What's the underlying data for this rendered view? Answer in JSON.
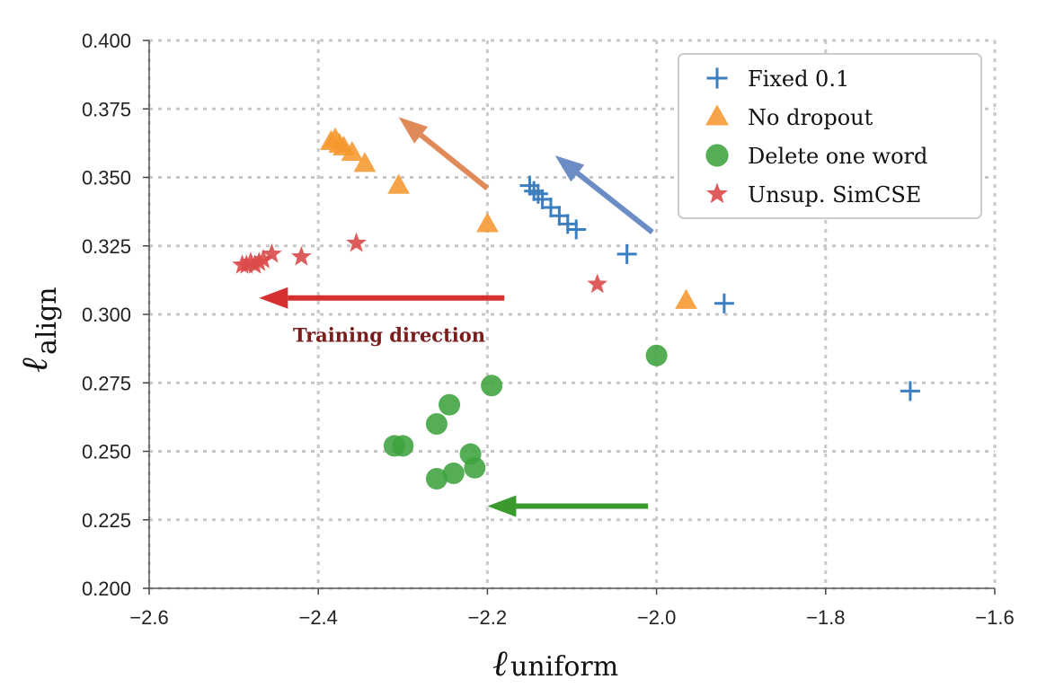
{
  "chart_data": {
    "type": "scatter",
    "xlabel": {
      "main": "ℓ",
      "sub": "uniform"
    },
    "ylabel": {
      "main": "ℓ",
      "sub": "align"
    },
    "xlim": [
      -2.6,
      -1.6
    ],
    "ylim": [
      0.2,
      0.4
    ],
    "xticks": [
      -2.6,
      -2.4,
      -2.2,
      -2.0,
      -1.8,
      -1.6
    ],
    "xtick_labels": [
      "−2.6",
      "−2.4",
      "−2.2",
      "−2.0",
      "−1.8",
      "−1.6"
    ],
    "yticks": [
      0.2,
      0.225,
      0.25,
      0.275,
      0.3,
      0.325,
      0.35,
      0.375,
      0.4
    ],
    "ytick_labels": [
      "0.200",
      "0.225",
      "0.250",
      "0.275",
      "0.300",
      "0.325",
      "0.350",
      "0.375",
      "0.400"
    ],
    "grid": true,
    "legend_position": "top-right",
    "series": [
      {
        "name": "Fixed 0.1",
        "marker": "plus",
        "color": "#3b7fc0",
        "points": [
          [
            -2.15,
            0.347
          ],
          [
            -2.145,
            0.345
          ],
          [
            -2.14,
            0.344
          ],
          [
            -2.135,
            0.342
          ],
          [
            -2.125,
            0.339
          ],
          [
            -2.115,
            0.336
          ],
          [
            -2.105,
            0.333
          ],
          [
            -2.095,
            0.331
          ],
          [
            -2.035,
            0.322
          ],
          [
            -1.92,
            0.304
          ],
          [
            -1.7,
            0.272
          ]
        ]
      },
      {
        "name": "No dropout",
        "marker": "triangle",
        "color": "#f5972e",
        "points": [
          [
            -2.385,
            0.363
          ],
          [
            -2.38,
            0.364
          ],
          [
            -2.375,
            0.362
          ],
          [
            -2.37,
            0.361
          ],
          [
            -2.36,
            0.359
          ],
          [
            -2.345,
            0.355
          ],
          [
            -2.305,
            0.347
          ],
          [
            -2.2,
            0.333
          ],
          [
            -1.965,
            0.305
          ]
        ]
      },
      {
        "name": "Delete one word",
        "marker": "circle",
        "color": "#3ea33e",
        "points": [
          [
            -2.195,
            0.274
          ],
          [
            -2.245,
            0.267
          ],
          [
            -2.26,
            0.26
          ],
          [
            -2.31,
            0.252
          ],
          [
            -2.3,
            0.252
          ],
          [
            -2.22,
            0.249
          ],
          [
            -2.215,
            0.244
          ],
          [
            -2.24,
            0.242
          ],
          [
            -2.26,
            0.24
          ],
          [
            -2.0,
            0.285
          ]
        ]
      },
      {
        "name": "Unsup. SimCSE",
        "marker": "star",
        "color": "#dc4a4a",
        "points": [
          [
            -2.49,
            0.318
          ],
          [
            -2.485,
            0.318
          ],
          [
            -2.48,
            0.319
          ],
          [
            -2.475,
            0.318
          ],
          [
            -2.47,
            0.319
          ],
          [
            -2.465,
            0.32
          ],
          [
            -2.455,
            0.322
          ],
          [
            -2.42,
            0.321
          ],
          [
            -2.355,
            0.326
          ],
          [
            -2.07,
            0.311
          ]
        ]
      }
    ],
    "arrows": [
      {
        "from": [
          -2.18,
          0.306
        ],
        "to": [
          -2.47,
          0.306
        ],
        "color": "#d63030"
      },
      {
        "from": [
          -2.01,
          0.23
        ],
        "to": [
          -2.2,
          0.23
        ],
        "color": "#3a9a2e"
      },
      {
        "from": [
          -2.2,
          0.346
        ],
        "to": [
          -2.305,
          0.372
        ],
        "color": "#e08a5a"
      },
      {
        "from": [
          -2.005,
          0.33
        ],
        "to": [
          -2.12,
          0.358
        ],
        "color": "#6b8cc4"
      }
    ],
    "annotation": {
      "text": "Training direction",
      "x": -2.43,
      "y": 0.29
    }
  }
}
